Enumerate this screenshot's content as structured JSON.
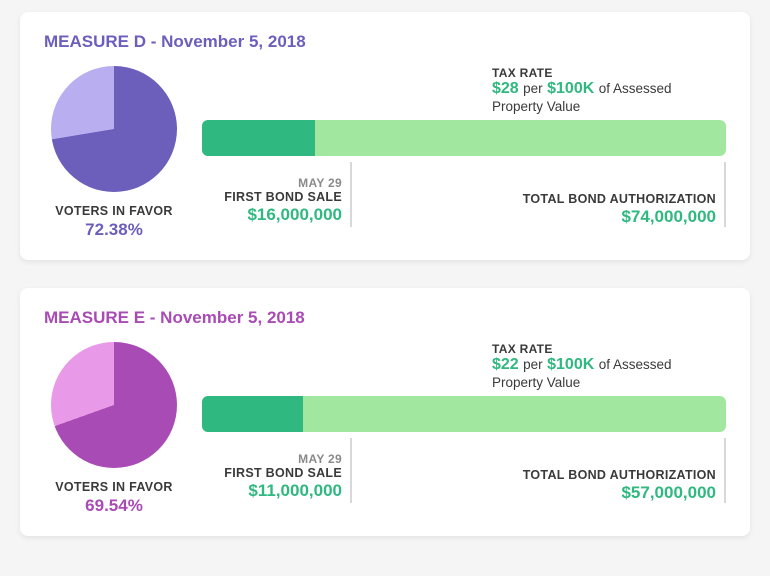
{
  "colors": {
    "green_dark": "#2fb880",
    "green_light": "#a2e79f",
    "gray_text": "#3a3a3a",
    "gray_sub": "#8a8a8a"
  },
  "measures": [
    {
      "title": "MEASURE D - November 5, 2018",
      "title_color": "#6b5fbb",
      "pie": {
        "percent": 72.38,
        "fill_color": "#6b5fbb",
        "remainder_color": "#b9aef0",
        "label": "VOTERS IN FAVOR",
        "value_text": "72.38%",
        "value_color": "#6b5fbb"
      },
      "tax": {
        "label": "TAX RATE",
        "rate_text": "$28",
        "per_text": "per",
        "basis_text": "$100K",
        "suffix_text": "of Assessed Property Value",
        "accent_color": "#2fb880"
      },
      "bar": {
        "first_sale": 16000000,
        "total_auth": 74000000,
        "fg_color": "#2fb880",
        "bg_color": "#a2e79f"
      },
      "first_sale": {
        "date": "MAY 29",
        "label": "FIRST BOND SALE",
        "value": "$16,000,000",
        "value_color": "#2fb880"
      },
      "total_auth": {
        "label": "TOTAL BOND AUTHORIZATION",
        "value": "$74,000,000",
        "value_color": "#2fb880"
      }
    },
    {
      "title": "MEASURE E - November 5, 2018",
      "title_color": "#a94bb5",
      "pie": {
        "percent": 69.54,
        "fill_color": "#a94bb5",
        "remainder_color": "#e89ae8",
        "label": "VOTERS IN FAVOR",
        "value_text": "69.54%",
        "value_color": "#a94bb5"
      },
      "tax": {
        "label": "TAX RATE",
        "rate_text": "$22",
        "per_text": "per",
        "basis_text": "$100K",
        "suffix_text": "of Assessed Property Value",
        "accent_color": "#2fb880"
      },
      "bar": {
        "first_sale": 11000000,
        "total_auth": 57000000,
        "fg_color": "#2fb880",
        "bg_color": "#a2e79f"
      },
      "first_sale": {
        "date": "MAY 29",
        "label": "FIRST BOND SALE",
        "value": "$11,000,000",
        "value_color": "#2fb880"
      },
      "total_auth": {
        "label": "TOTAL BOND AUTHORIZATION",
        "value": "$57,000,000",
        "value_color": "#2fb880"
      }
    }
  ]
}
